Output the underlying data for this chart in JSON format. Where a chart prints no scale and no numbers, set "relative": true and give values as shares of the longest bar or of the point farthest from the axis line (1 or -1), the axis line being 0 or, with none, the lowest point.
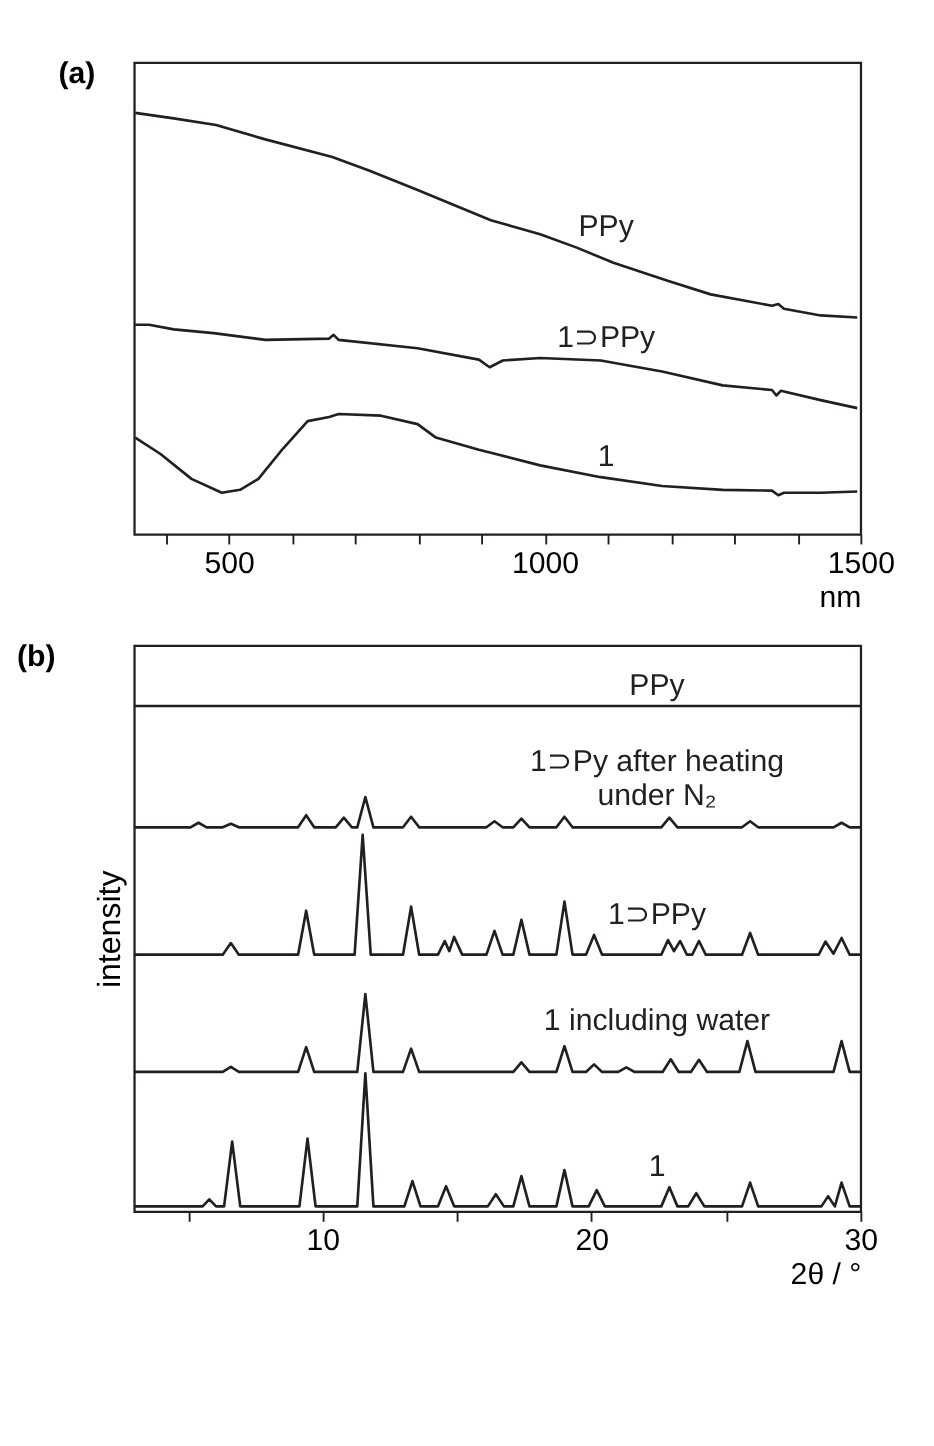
{
  "chart_data": [
    {
      "type": "line",
      "title": "(a)",
      "xlabel": "nm",
      "relative": true,
      "grid": false,
      "line_style": "solid",
      "marker": "none",
      "xlim": [
        350,
        1500
      ],
      "xticks": [
        {
          "value": 400,
          "label": null
        },
        500,
        {
          "value": 600,
          "label": null
        },
        {
          "value": 700,
          "label": null
        },
        {
          "value": 800,
          "label": null
        },
        {
          "value": 900,
          "label": null
        },
        1000,
        {
          "value": 1100,
          "label": null
        },
        {
          "value": 1200,
          "label": null
        },
        {
          "value": 1300,
          "label": null
        },
        {
          "value": 1400,
          "label": null
        },
        1500
      ],
      "series": [
        {
          "name": "PPy",
          "color": "#231f20",
          "x": [
            352,
            413,
            480,
            558,
            664,
            722,
            799,
            915,
            993,
            1051,
            1109,
            1196,
            1263,
            1360,
            1370,
            1379,
            1437,
            1495
          ],
          "values": [
            1.0,
            0.987,
            0.971,
            0.937,
            0.895,
            0.863,
            0.817,
            0.745,
            0.712,
            0.68,
            0.644,
            0.601,
            0.569,
            0.542,
            0.546,
            0.535,
            0.519,
            0.514
          ]
        },
        {
          "name": "1⊃PPy",
          "color": "#231f20",
          "x": [
            352,
            374,
            413,
            476,
            558,
            659,
            666,
            674,
            799,
            896,
            913,
            934,
            993,
            1089,
            1186,
            1282,
            1360,
            1367,
            1374,
            1437,
            1495
          ],
          "values": [
            0.497,
            0.497,
            0.486,
            0.477,
            0.461,
            0.464,
            0.473,
            0.461,
            0.441,
            0.414,
            0.396,
            0.412,
            0.418,
            0.412,
            0.386,
            0.353,
            0.342,
            0.329,
            0.34,
            0.318,
            0.299
          ]
        },
        {
          "name": "1",
          "color": "#231f20",
          "x": [
            352,
            392,
            441,
            489,
            518,
            547,
            586,
            625,
            659,
            674,
            741,
            799,
            828,
            896,
            915,
            993,
            1089,
            1186,
            1282,
            1360,
            1370,
            1379,
            1437,
            1495
          ],
          "values": [
            0.229,
            0.19,
            0.131,
            0.098,
            0.105,
            0.131,
            0.203,
            0.268,
            0.278,
            0.285,
            0.281,
            0.261,
            0.229,
            0.2,
            0.193,
            0.163,
            0.135,
            0.114,
            0.105,
            0.103,
            0.092,
            0.098,
            0.098,
            0.101
          ]
        }
      ]
    },
    {
      "type": "line",
      "title": "(b)",
      "xlabel": "2θ / °",
      "ylabel": "intensity",
      "relative": true,
      "grid": false,
      "line_style": "solid",
      "marker": "none",
      "xlim": [
        3,
        30
      ],
      "xticks": [
        {
          "value": 5,
          "label": null
        },
        10,
        {
          "value": 15,
          "label": null
        },
        20,
        {
          "value": 25,
          "label": null
        },
        30
      ],
      "series": [
        {
          "name": "PPy",
          "color": "#231f20",
          "x": [
            3,
            10,
            20,
            25,
            30
          ],
          "values": [
            1,
            1,
            1,
            1,
            1
          ]
        },
        {
          "name": "1⊃Py after heating\nunder N₂",
          "color": "#231f20",
          "x": [
            3,
            5.1,
            5.4,
            5.7,
            6.3,
            6.6,
            6.9,
            9.1,
            9.4,
            9.7,
            10.5,
            10.8,
            11.1,
            11.3,
            11.6,
            11.9,
            13,
            13.3,
            13.6,
            16.1,
            16.4,
            16.7,
            17.1,
            17.4,
            17.7,
            18.7,
            19,
            19.3,
            22.6,
            22.9,
            23.2,
            25.6,
            25.9,
            26.2,
            29,
            29.3,
            29.6,
            30
          ],
          "values": [
            0.76,
            0.76,
            0.769,
            0.76,
            0.76,
            0.767,
            0.76,
            0.76,
            0.784,
            0.76,
            0.76,
            0.779,
            0.76,
            0.76,
            0.82,
            0.76,
            0.76,
            0.781,
            0.76,
            0.76,
            0.772,
            0.76,
            0.76,
            0.777,
            0.76,
            0.76,
            0.781,
            0.76,
            0.76,
            0.779,
            0.76,
            0.76,
            0.772,
            0.76,
            0.76,
            0.769,
            0.76,
            0.76
          ]
        },
        {
          "name": "1⊃PPy",
          "color": "#231f20",
          "x": [
            3,
            6.3,
            6.6,
            6.9,
            9.1,
            9.4,
            9.7,
            11.2,
            11.5,
            11.8,
            13,
            13.3,
            13.6,
            14.3,
            14.55,
            14.72,
            14.9,
            15.2,
            16.1,
            16.4,
            16.7,
            17.1,
            17.4,
            17.7,
            18.7,
            19,
            19.3,
            19.8,
            20.1,
            20.4,
            22.6,
            22.85,
            23.07,
            23.3,
            23.55,
            23.75,
            24,
            24.25,
            25.6,
            25.9,
            26.2,
            28.45,
            28.7,
            29,
            29.3,
            29.6,
            30
          ],
          "values": [
            0.508,
            0.508,
            0.531,
            0.508,
            0.508,
            0.595,
            0.508,
            0.508,
            0.745,
            0.508,
            0.508,
            0.603,
            0.508,
            0.508,
            0.535,
            0.515,
            0.543,
            0.508,
            0.508,
            0.555,
            0.508,
            0.508,
            0.577,
            0.508,
            0.508,
            0.613,
            0.508,
            0.508,
            0.547,
            0.508,
            0.508,
            0.537,
            0.515,
            0.535,
            0.508,
            0.508,
            0.535,
            0.508,
            0.508,
            0.551,
            0.508,
            0.508,
            0.534,
            0.51,
            0.541,
            0.508,
            0.508
          ]
        },
        {
          "name": "1 including water",
          "color": "#231f20",
          "x": [
            3,
            6.3,
            6.6,
            6.9,
            9.1,
            9.4,
            9.7,
            11.3,
            11.6,
            11.9,
            13,
            13.3,
            13.6,
            17.1,
            17.4,
            17.7,
            18.7,
            19,
            19.3,
            19.8,
            20.1,
            20.4,
            21,
            21.3,
            21.6,
            22.65,
            22.95,
            23.25,
            23.7,
            24,
            24.3,
            25.5,
            25.8,
            26.1,
            29,
            29.3,
            29.6,
            30
          ],
          "values": [
            0.276,
            0.276,
            0.286,
            0.276,
            0.276,
            0.325,
            0.276,
            0.276,
            0.43,
            0.276,
            0.276,
            0.322,
            0.276,
            0.276,
            0.295,
            0.276,
            0.276,
            0.327,
            0.276,
            0.276,
            0.291,
            0.276,
            0.276,
            0.285,
            0.276,
            0.276,
            0.301,
            0.276,
            0.276,
            0.3,
            0.276,
            0.276,
            0.337,
            0.276,
            0.276,
            0.337,
            0.276,
            0.276
          ]
        },
        {
          "name": "1",
          "color": "#231f20",
          "x": [
            3,
            5.55,
            5.8,
            6.05,
            6.35,
            6.65,
            6.95,
            9.15,
            9.45,
            9.75,
            11.3,
            11.6,
            11.9,
            13.05,
            13.35,
            13.65,
            14.3,
            14.6,
            14.9,
            16.15,
            16.45,
            16.75,
            17.1,
            17.4,
            17.7,
            18.7,
            19,
            19.3,
            19.9,
            20.2,
            20.5,
            22.6,
            22.9,
            23.2,
            23.6,
            23.9,
            24.2,
            25.6,
            25.9,
            26.2,
            28.55,
            28.8,
            29.05,
            29.3,
            29.6,
            30
          ],
          "values": [
            0.01,
            0.01,
            0.024,
            0.01,
            0.01,
            0.138,
            0.01,
            0.01,
            0.144,
            0.01,
            0.01,
            0.273,
            0.01,
            0.01,
            0.06,
            0.01,
            0.01,
            0.05,
            0.01,
            0.01,
            0.034,
            0.01,
            0.01,
            0.07,
            0.01,
            0.01,
            0.082,
            0.01,
            0.01,
            0.042,
            0.01,
            0.01,
            0.048,
            0.01,
            0.01,
            0.036,
            0.01,
            0.01,
            0.057,
            0.01,
            0.01,
            0.03,
            0.01,
            0.057,
            0.01,
            0.01
          ]
        }
      ]
    }
  ]
}
